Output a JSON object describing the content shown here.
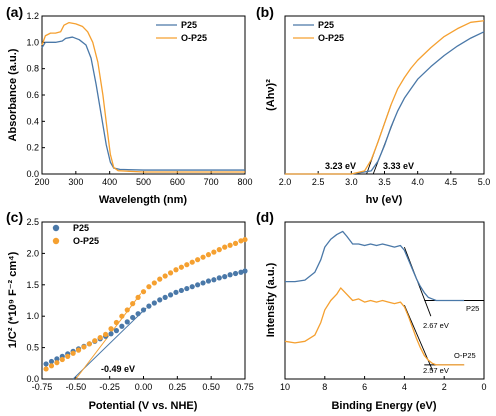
{
  "colors": {
    "P25": "#4a78a8",
    "O-P25": "#f5a030",
    "line": "#000000"
  },
  "chart_data": [
    {
      "id": "a",
      "panel_label": "(a)",
      "type": "line",
      "xlabel": "Wavelength (nm)",
      "ylabel": "Absorbance (a.u.)",
      "xlim": [
        200,
        800
      ],
      "ylim": [
        0.0,
        1.2
      ],
      "xticks": [
        "200",
        "300",
        "400",
        "500",
        "600",
        "700",
        "800"
      ],
      "yticks": [
        "0.0",
        "0.2",
        "0.4",
        "0.6",
        "0.8",
        "1.0",
        "1.2"
      ],
      "legend_position": "top-right",
      "series": [
        {
          "name": "P25",
          "color_key": "P25",
          "points": [
            [
              200,
              0.96
            ],
            [
              210,
              1.0
            ],
            [
              220,
              1.0
            ],
            [
              240,
              1.0
            ],
            [
              260,
              1.01
            ],
            [
              270,
              1.03
            ],
            [
              290,
              1.04
            ],
            [
              310,
              1.02
            ],
            [
              330,
              0.98
            ],
            [
              345,
              0.88
            ],
            [
              360,
              0.68
            ],
            [
              375,
              0.45
            ],
            [
              390,
              0.22
            ],
            [
              402,
              0.09
            ],
            [
              412,
              0.045
            ],
            [
              430,
              0.035
            ],
            [
              500,
              0.03
            ],
            [
              600,
              0.03
            ],
            [
              700,
              0.03
            ],
            [
              800,
              0.03
            ]
          ]
        },
        {
          "name": "O-P25",
          "color_key": "O-P25",
          "points": [
            [
              200,
              0.98
            ],
            [
              210,
              1.05
            ],
            [
              225,
              1.07
            ],
            [
              240,
              1.07
            ],
            [
              255,
              1.08
            ],
            [
              265,
              1.13
            ],
            [
              280,
              1.15
            ],
            [
              300,
              1.14
            ],
            [
              320,
              1.12
            ],
            [
              335,
              1.08
            ],
            [
              350,
              1.0
            ],
            [
              365,
              0.85
            ],
            [
              380,
              0.6
            ],
            [
              392,
              0.35
            ],
            [
              402,
              0.15
            ],
            [
              412,
              0.05
            ],
            [
              425,
              0.025
            ],
            [
              500,
              0.015
            ],
            [
              600,
              0.015
            ],
            [
              700,
              0.015
            ],
            [
              800,
              0.015
            ]
          ]
        }
      ]
    },
    {
      "id": "b",
      "panel_label": "(b)",
      "type": "line",
      "xlabel": "hν (eV)",
      "ylabel": "(Ahν)²",
      "xlim": [
        2.0,
        5.0
      ],
      "ylim": [
        0,
        1
      ],
      "xticks": [
        "2.0",
        "2.5",
        "3.0",
        "3.5",
        "4.0",
        "4.5",
        "5.0"
      ],
      "yticks": [],
      "legend_position": "top-left",
      "annotations": [
        {
          "text": "3.23 eV",
          "x": 3.23
        },
        {
          "text": "3.33 eV",
          "x": 3.33
        }
      ],
      "series": [
        {
          "name": "P25",
          "color_key": "P25",
          "points": [
            [
              2.0,
              0.0
            ],
            [
              3.0,
              0.0
            ],
            [
              3.3,
              0.02
            ],
            [
              3.4,
              0.08
            ],
            [
              3.5,
              0.18
            ],
            [
              3.6,
              0.3
            ],
            [
              3.7,
              0.4
            ],
            [
              3.8,
              0.48
            ],
            [
              3.9,
              0.54
            ],
            [
              4.0,
              0.6
            ],
            [
              4.2,
              0.68
            ],
            [
              4.4,
              0.75
            ],
            [
              4.6,
              0.81
            ],
            [
              4.8,
              0.86
            ],
            [
              5.0,
              0.9
            ]
          ]
        },
        {
          "name": "O-P25",
          "color_key": "O-P25",
          "points": [
            [
              2.0,
              0.0
            ],
            [
              3.0,
              0.0
            ],
            [
              3.2,
              0.02
            ],
            [
              3.3,
              0.09
            ],
            [
              3.4,
              0.2
            ],
            [
              3.5,
              0.32
            ],
            [
              3.6,
              0.44
            ],
            [
              3.7,
              0.54
            ],
            [
              3.8,
              0.61
            ],
            [
              3.9,
              0.67
            ],
            [
              4.0,
              0.72
            ],
            [
              4.2,
              0.8
            ],
            [
              4.4,
              0.87
            ],
            [
              4.6,
              0.92
            ],
            [
              4.8,
              0.96
            ],
            [
              5.0,
              0.97
            ]
          ]
        }
      ]
    },
    {
      "id": "c",
      "panel_label": "(c)",
      "type": "scatter",
      "xlabel": "Potential (V vs. NHE)",
      "ylabel": "1/C² (*10⁹ F⁻² cm⁴)",
      "xlim": [
        -0.75,
        0.75
      ],
      "ylim": [
        0.0,
        2.5
      ],
      "xticks": [
        "-0.75",
        "-0.50",
        "-0.25",
        "0.00",
        "0.25",
        "0.50",
        "0.75"
      ],
      "yticks": [
        "0.0",
        "0.5",
        "1.0",
        "1.5",
        "2.0",
        "2.5"
      ],
      "legend_position": "top-left",
      "annotations": [
        {
          "text": "-0.49 eV",
          "x": -0.49
        }
      ],
      "series": [
        {
          "name": "P25",
          "color_key": "P25",
          "x": [
            -0.72,
            -0.68,
            -0.64,
            -0.6,
            -0.56,
            -0.52,
            -0.48,
            -0.44,
            -0.4,
            -0.36,
            -0.32,
            -0.28,
            -0.24,
            -0.2,
            -0.16,
            -0.12,
            -0.08,
            -0.04,
            0.0,
            0.04,
            0.08,
            0.12,
            0.16,
            0.2,
            0.24,
            0.28,
            0.32,
            0.36,
            0.4,
            0.44,
            0.48,
            0.52,
            0.56,
            0.6,
            0.64,
            0.68,
            0.72,
            0.75
          ],
          "y": [
            0.24,
            0.28,
            0.32,
            0.36,
            0.4,
            0.44,
            0.48,
            0.52,
            0.56,
            0.6,
            0.64,
            0.68,
            0.72,
            0.77,
            0.84,
            0.91,
            0.98,
            1.04,
            1.1,
            1.16,
            1.21,
            1.26,
            1.3,
            1.34,
            1.38,
            1.41,
            1.44,
            1.47,
            1.5,
            1.53,
            1.56,
            1.58,
            1.61,
            1.63,
            1.66,
            1.68,
            1.7,
            1.72
          ]
        },
        {
          "name": "O-P25",
          "color_key": "O-P25",
          "x": [
            -0.72,
            -0.68,
            -0.64,
            -0.6,
            -0.56,
            -0.52,
            -0.48,
            -0.44,
            -0.4,
            -0.36,
            -0.32,
            -0.28,
            -0.24,
            -0.2,
            -0.16,
            -0.12,
            -0.08,
            -0.04,
            0.0,
            0.04,
            0.08,
            0.12,
            0.16,
            0.2,
            0.24,
            0.28,
            0.32,
            0.36,
            0.4,
            0.44,
            0.48,
            0.52,
            0.56,
            0.6,
            0.64,
            0.68,
            0.72,
            0.75
          ],
          "y": [
            0.16,
            0.21,
            0.26,
            0.31,
            0.36,
            0.41,
            0.46,
            0.51,
            0.56,
            0.61,
            0.66,
            0.71,
            0.8,
            0.9,
            1.0,
            1.1,
            1.2,
            1.3,
            1.39,
            1.47,
            1.53,
            1.59,
            1.64,
            1.69,
            1.74,
            1.78,
            1.82,
            1.86,
            1.9,
            1.94,
            1.98,
            2.02,
            2.06,
            2.1,
            2.13,
            2.16,
            2.2,
            2.22
          ]
        }
      ]
    },
    {
      "id": "d",
      "panel_label": "(d)",
      "type": "line",
      "xlabel": "Binding Energy (eV)",
      "ylabel": "Intensity (a.u.)",
      "xlim": [
        10,
        0
      ],
      "ylim": [
        0,
        1
      ],
      "xticks": [
        "10",
        "8",
        "6",
        "4",
        "2",
        "0"
      ],
      "yticks": [],
      "annotations": [
        {
          "text": "P25",
          "target": "P25"
        },
        {
          "text": "O-P25",
          "target": "O-P25"
        },
        {
          "text": "2.67 eV",
          "x": 2.67
        },
        {
          "text": "2.57 eV",
          "x": 2.57
        }
      ],
      "series": [
        {
          "name": "P25",
          "color_key": "P25",
          "points": [
            [
              10,
              0.62
            ],
            [
              9.5,
              0.62
            ],
            [
              9.0,
              0.63
            ],
            [
              8.5,
              0.68
            ],
            [
              8.2,
              0.76
            ],
            [
              8.0,
              0.84
            ],
            [
              7.7,
              0.89
            ],
            [
              7.4,
              0.92
            ],
            [
              7.1,
              0.94
            ],
            [
              6.9,
              0.91
            ],
            [
              6.6,
              0.86
            ],
            [
              6.3,
              0.86
            ],
            [
              6.0,
              0.85
            ],
            [
              5.7,
              0.86
            ],
            [
              5.4,
              0.85
            ],
            [
              5.1,
              0.86
            ],
            [
              4.8,
              0.85
            ],
            [
              4.5,
              0.84
            ],
            [
              4.2,
              0.85
            ],
            [
              4.0,
              0.82
            ],
            [
              3.8,
              0.76
            ],
            [
              3.6,
              0.7
            ],
            [
              3.4,
              0.64
            ],
            [
              3.2,
              0.59
            ],
            [
              3.0,
              0.55
            ],
            [
              2.8,
              0.52
            ],
            [
              2.6,
              0.51
            ],
            [
              2.4,
              0.5
            ],
            [
              2.0,
              0.5
            ],
            [
              1.5,
              0.5
            ],
            [
              1.0,
              0.5
            ]
          ]
        },
        {
          "name": "O-P25",
          "color_key": "O-P25",
          "points": [
            [
              10,
              0.24
            ],
            [
              9.5,
              0.23
            ],
            [
              9.0,
              0.24
            ],
            [
              8.5,
              0.28
            ],
            [
              8.2,
              0.36
            ],
            [
              8.0,
              0.44
            ],
            [
              7.7,
              0.5
            ],
            [
              7.4,
              0.54
            ],
            [
              7.2,
              0.58
            ],
            [
              6.9,
              0.54
            ],
            [
              6.6,
              0.5
            ],
            [
              6.3,
              0.51
            ],
            [
              6.0,
              0.49
            ],
            [
              5.7,
              0.5
            ],
            [
              5.4,
              0.49
            ],
            [
              5.1,
              0.5
            ],
            [
              4.8,
              0.49
            ],
            [
              4.5,
              0.48
            ],
            [
              4.2,
              0.49
            ],
            [
              4.0,
              0.46
            ],
            [
              3.8,
              0.4
            ],
            [
              3.6,
              0.33
            ],
            [
              3.4,
              0.26
            ],
            [
              3.2,
              0.2
            ],
            [
              3.0,
              0.15
            ],
            [
              2.8,
              0.12
            ],
            [
              2.6,
              0.1
            ],
            [
              2.4,
              0.09
            ],
            [
              2.0,
              0.09
            ],
            [
              1.5,
              0.09
            ],
            [
              1.0,
              0.09
            ]
          ]
        }
      ]
    }
  ]
}
